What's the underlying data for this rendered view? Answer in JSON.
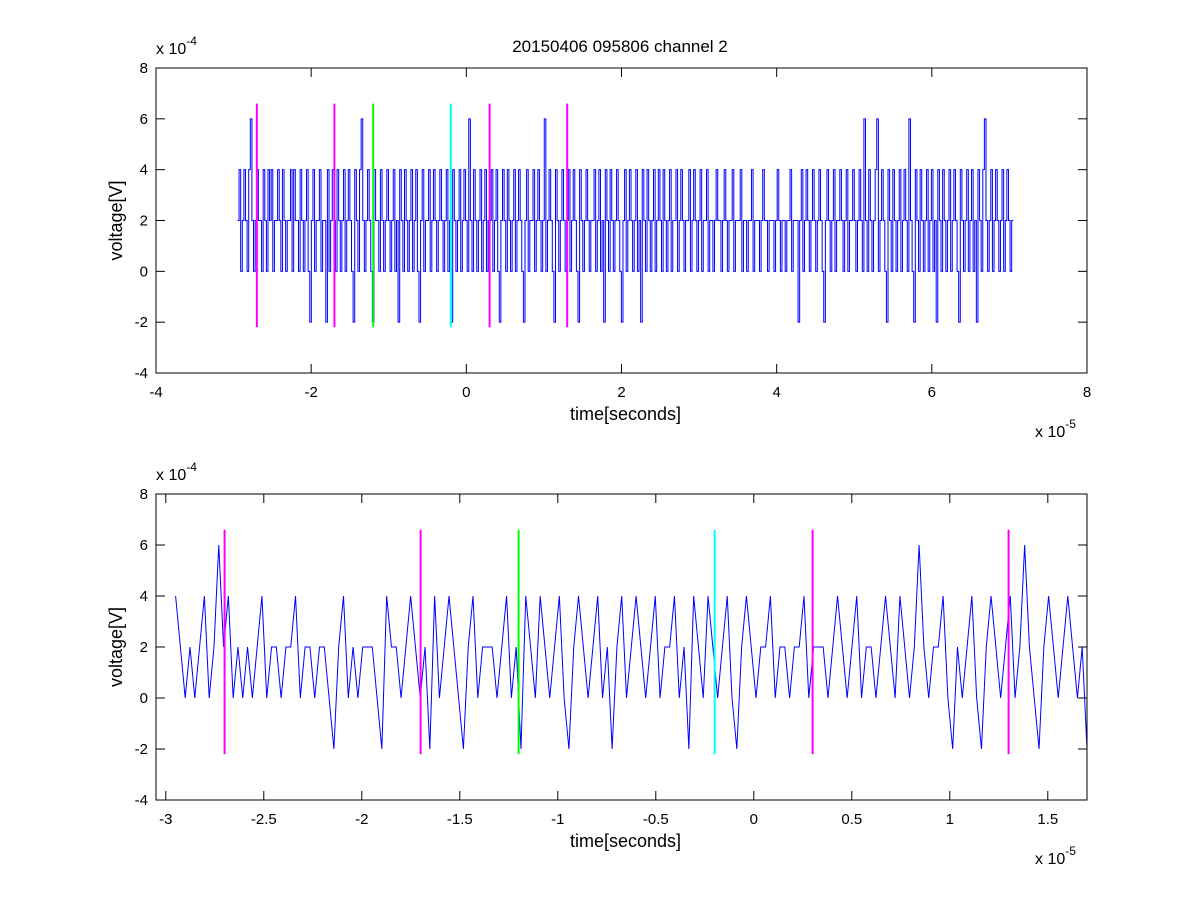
{
  "figure_title": "20150406 095806 channel 2",
  "colors": {
    "signal": "#0000ff",
    "marker_magenta": "#ff00ff",
    "marker_green": "#00ff00",
    "marker_cyan": "#00ffff",
    "axes": "#000000",
    "background": "#ffffff"
  },
  "chart_data": [
    {
      "type": "line",
      "title": "20150406 095806 channel 2",
      "xlabel": "time[seconds]",
      "ylabel": "voltage[V]",
      "xlim": [
        -4e-05,
        8e-05
      ],
      "ylim": [
        -0.0004,
        0.0008
      ],
      "x_ticks": [
        -4,
        -2,
        0,
        2,
        4,
        6,
        8
      ],
      "x_tick_labels": [
        "-4",
        "-2",
        "0",
        "2",
        "4",
        "6",
        "8"
      ],
      "y_ticks": [
        -4,
        -2,
        0,
        2,
        4,
        6,
        8
      ],
      "y_tick_labels": [
        "-4",
        "-2",
        "0",
        "2",
        "4",
        "6",
        "8"
      ],
      "x_multiplier": {
        "base": "x 10",
        "exponent": "-5"
      },
      "y_multiplier": {
        "base": "x 10",
        "exponent": "-4"
      },
      "grid": false,
      "series": [
        {
          "style": "step",
          "color": "#0000ff",
          "x_start": -2.95e-05,
          "x_end": 7.05e-05,
          "levels_e4": [
            2,
            4,
            0,
            2,
            4,
            2,
            0,
            4,
            6,
            2,
            0,
            2,
            4,
            2,
            2,
            0,
            4,
            2,
            0,
            4,
            2,
            4,
            0,
            2,
            2,
            4,
            2,
            0,
            4,
            2,
            0,
            2,
            2,
            4,
            0,
            4,
            2,
            2,
            0,
            4,
            2,
            0,
            2,
            4,
            0,
            -2,
            2,
            4,
            0,
            2,
            2,
            4,
            0,
            2,
            2,
            -2,
            4,
            0,
            2,
            4,
            2,
            0,
            4,
            2,
            0,
            2,
            4,
            0,
            2,
            4,
            2,
            0,
            -2,
            4,
            2,
            0,
            4,
            6,
            2,
            0,
            2,
            4,
            2,
            0,
            -2,
            4,
            2,
            2,
            0,
            4,
            2,
            0,
            2,
            4,
            2,
            0,
            2,
            4,
            0,
            2,
            -2,
            4,
            2,
            0,
            4,
            2,
            0,
            2,
            4,
            0,
            2,
            4,
            0,
            -2,
            2,
            4,
            0,
            2,
            2,
            4,
            0,
            2,
            4,
            2,
            0,
            2,
            4,
            2,
            0,
            2,
            4,
            0,
            2,
            -2,
            4,
            2,
            0,
            2,
            4,
            0,
            2,
            4,
            2,
            0,
            6,
            2,
            0,
            4,
            2,
            0,
            2,
            4,
            0,
            2,
            4,
            0,
            2,
            2,
            4,
            0,
            2,
            4,
            0,
            -2,
            2,
            4,
            2,
            0,
            4,
            2,
            0,
            2,
            4,
            0,
            2,
            4,
            2,
            0,
            -2,
            2,
            4,
            0,
            2,
            2,
            4,
            0,
            2,
            4,
            2,
            0,
            2,
            6,
            0,
            2,
            4,
            2,
            0,
            -2,
            4,
            2,
            0,
            2,
            4,
            2,
            0,
            2,
            4,
            0,
            2,
            4,
            2,
            0,
            -2,
            4,
            2,
            0,
            2,
            4,
            2,
            0,
            2,
            2,
            4,
            0,
            2,
            4,
            0,
            2,
            -2,
            4,
            2,
            0,
            4,
            2,
            0,
            2,
            4,
            2,
            0,
            -2,
            2,
            4,
            0,
            2,
            4,
            2,
            0,
            2,
            4,
            0,
            2,
            -2,
            4,
            2,
            0,
            4,
            2,
            0,
            2,
            4,
            0,
            2,
            4,
            2,
            0,
            4,
            2,
            0,
            2,
            4,
            0,
            2,
            2,
            4,
            0,
            2,
            4,
            2,
            0,
            2,
            2,
            4,
            0,
            2,
            4,
            2,
            0,
            2,
            4,
            0,
            2,
            2,
            4,
            0,
            2,
            2,
            0,
            2,
            4,
            2,
            2,
            0,
            2,
            4,
            2,
            0,
            2,
            2,
            4,
            0,
            2,
            2,
            2,
            4,
            0,
            2,
            2,
            0,
            2,
            2,
            4,
            0,
            2,
            2,
            2,
            0,
            2,
            4,
            2,
            2,
            0,
            2,
            2,
            2,
            0,
            2,
            4,
            2,
            0,
            2,
            2,
            0,
            2,
            2,
            4,
            0,
            2,
            2,
            2,
            -2,
            2,
            4,
            0,
            2,
            4,
            2,
            0,
            2,
            4,
            2,
            0,
            2,
            4,
            2,
            0,
            -2,
            2,
            4,
            2,
            0,
            2,
            4,
            0,
            2,
            2,
            4,
            2,
            0,
            2,
            4,
            0,
            2,
            2,
            4,
            2,
            0,
            2,
            4,
            2,
            0,
            6,
            2,
            0,
            4,
            2,
            0,
            2,
            4,
            6,
            0,
            2,
            4,
            2,
            0,
            -2,
            4,
            2,
            0,
            4,
            2,
            0,
            2,
            4,
            0,
            2,
            4,
            2,
            0,
            6,
            2,
            0,
            -2,
            4,
            2,
            0,
            4,
            2,
            0,
            2,
            4,
            0,
            2,
            4,
            0,
            2,
            -2,
            4,
            2,
            0,
            4,
            2,
            0,
            2,
            4,
            0,
            2,
            4,
            2,
            0,
            -2,
            4,
            2,
            0,
            2,
            4,
            0,
            2,
            4,
            0,
            2,
            -2,
            4,
            2,
            0,
            4,
            6,
            2,
            0,
            2,
            4,
            0,
            2,
            4,
            2,
            0,
            2,
            4,
            0,
            2,
            4,
            2,
            0,
            2
          ]
        }
      ],
      "markers": [
        {
          "x": -2.7e-05,
          "color": "#ff00ff",
          "y_range": [
            -0.00022,
            0.00066
          ]
        },
        {
          "x": -1.7e-05,
          "color": "#ff00ff",
          "y_range": [
            -0.00022,
            0.00066
          ]
        },
        {
          "x": -1.2e-05,
          "color": "#00ff00",
          "y_range": [
            -0.00022,
            0.00066
          ]
        },
        {
          "x": -2e-06,
          "color": "#00ffff",
          "y_range": [
            -0.00022,
            0.00066
          ]
        },
        {
          "x": 3e-06,
          "color": "#ff00ff",
          "y_range": [
            -0.00022,
            0.00066
          ]
        },
        {
          "x": 1.3e-05,
          "color": "#ff00ff",
          "y_range": [
            -0.00022,
            0.00066
          ]
        }
      ]
    },
    {
      "type": "line",
      "title": "",
      "xlabel": "time[seconds]",
      "ylabel": "voltage[V]",
      "xlim": [
        -3.05e-05,
        1.7e-05
      ],
      "ylim": [
        -0.0004,
        0.0008
      ],
      "x_ticks": [
        -3,
        -2.5,
        -2,
        -1.5,
        -1,
        -0.5,
        0,
        0.5,
        1,
        1.5
      ],
      "x_tick_labels": [
        "-3",
        "-2.5",
        "-2",
        "-1.5",
        "-1",
        "-0.5",
        "0",
        "0.5",
        "1",
        "1.5"
      ],
      "y_ticks": [
        -4,
        -2,
        0,
        2,
        4,
        6,
        8
      ],
      "y_tick_labels": [
        "-4",
        "-2",
        "0",
        "2",
        "4",
        "6",
        "8"
      ],
      "x_multiplier": {
        "base": "x 10",
        "exponent": "-5"
      },
      "y_multiplier": {
        "base": "x 10",
        "exponent": "-4"
      },
      "grid": false,
      "series": [
        {
          "style": "line",
          "color": "#0000ff",
          "x_start": -2.95e-05,
          "x_end": 1.7e-05,
          "levels_e4": [
            4,
            2,
            0,
            2,
            0,
            2,
            4,
            0,
            2,
            6,
            2,
            4,
            0,
            2,
            0,
            2,
            0,
            2,
            4,
            0,
            2,
            2,
            0,
            2,
            2,
            4,
            0,
            2,
            2,
            0,
            2,
            2,
            0,
            -2,
            2,
            4,
            0,
            2,
            0,
            2,
            2,
            2,
            0,
            -2,
            4,
            2,
            2,
            0,
            2,
            4,
            2,
            0,
            2,
            -2,
            4,
            0,
            2,
            4,
            2,
            0,
            -2,
            2,
            4,
            0,
            2,
            2,
            2,
            0,
            2,
            4,
            0,
            2,
            -2,
            4,
            2,
            0,
            4,
            2,
            0,
            2,
            4,
            0,
            -2,
            2,
            4,
            2,
            0,
            2,
            4,
            0,
            2,
            -2,
            2,
            4,
            0,
            2,
            4,
            2,
            0,
            2,
            4,
            0,
            2,
            2,
            4,
            0,
            2,
            -2,
            4,
            2,
            0,
            4,
            2,
            0,
            2,
            4,
            0,
            -2,
            2,
            4,
            2,
            0,
            2,
            2,
            4,
            0,
            2,
            2,
            0,
            2,
            2,
            4,
            0,
            2,
            2,
            2,
            0,
            2,
            4,
            2,
            0,
            2,
            4,
            0,
            2,
            2,
            0,
            2,
            4,
            2,
            0,
            4,
            2,
            0,
            2,
            6,
            2,
            0,
            2,
            2,
            4,
            0,
            -2,
            2,
            0,
            2,
            4,
            0,
            -2,
            2,
            4,
            2,
            0,
            2,
            4,
            0,
            2,
            6,
            2,
            0,
            -2,
            2,
            4,
            2,
            0,
            2,
            4,
            2,
            0,
            2,
            -2
          ]
        }
      ],
      "markers": [
        {
          "x": -2.7e-05,
          "color": "#ff00ff",
          "y_range": [
            -0.00022,
            0.00066
          ]
        },
        {
          "x": -1.7e-05,
          "color": "#ff00ff",
          "y_range": [
            -0.00022,
            0.00066
          ]
        },
        {
          "x": -1.2e-05,
          "color": "#00ff00",
          "y_range": [
            -0.00022,
            0.00066
          ]
        },
        {
          "x": -2e-06,
          "color": "#00ffff",
          "y_range": [
            -0.00022,
            0.00066
          ]
        },
        {
          "x": 3e-06,
          "color": "#ff00ff",
          "y_range": [
            -0.00022,
            0.00066
          ]
        },
        {
          "x": 1.3e-05,
          "color": "#ff00ff",
          "y_range": [
            -0.00022,
            0.00066
          ]
        }
      ]
    }
  ]
}
